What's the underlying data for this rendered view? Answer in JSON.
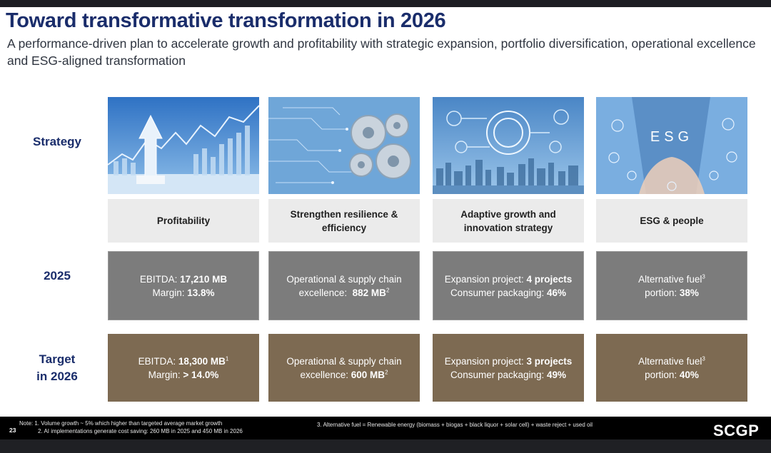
{
  "title": "Toward transformative transformation in 2026",
  "subtitle": "A performance-driven plan to accelerate growth and profitability with strategic expansion, portfolio diversification, operational excellence and ESG-aligned transformation",
  "rows": {
    "strategy": "Strategy",
    "y2025": "2025",
    "target_line1": "Target",
    "target_line2": "in 2026"
  },
  "images": {
    "esg_text": "ESG"
  },
  "columns": [
    {
      "header": "Profitability",
      "y2025": {
        "l1_label": "EBITDA: ",
        "l1_value": "17,210 MB",
        "l1_sup": "",
        "l2_label": "Margin: ",
        "l2_value": "13.8%"
      },
      "target": {
        "l1_label": "EBITDA: ",
        "l1_value": "18,300 MB",
        "l1_sup": "1",
        "l2_label": "Margin: ",
        "l2_value": "> 14.0%"
      }
    },
    {
      "header": "Strengthen resilience & efficiency",
      "y2025": {
        "l1_text": "Operational & supply chain",
        "l2_label": "excellence:  ",
        "l2_value": "882 MB",
        "l2_sup": "2"
      },
      "target": {
        "l1_text": "Operational & supply chain",
        "l2_label": "excellence: ",
        "l2_value": "600 MB",
        "l2_sup": "2"
      }
    },
    {
      "header": "Adaptive growth and innovation strategy",
      "y2025": {
        "l1_label": "Expansion project: ",
        "l1_value": "4 projects",
        "l2_label": "Consumer packaging: ",
        "l2_value": "46%"
      },
      "target": {
        "l1_label": "Expansion project: ",
        "l1_value": "3 projects",
        "l2_label": "Consumer packaging: ",
        "l2_value": "49%"
      }
    },
    {
      "header": "ESG & people",
      "y2025": {
        "l1_text": "Alternative fuel",
        "l1_sup": "3",
        "l2_label": "portion: ",
        "l2_value": "38%"
      },
      "target": {
        "l1_text": "Alternative fuel",
        "l1_sup": "3",
        "l2_label": "portion: ",
        "l2_value": "40%"
      }
    }
  ],
  "footer": {
    "page_number": "23",
    "note_line1": "Note:  1. Volume growth ~ 5% which higher than targeted average market growth",
    "note_line2": "2. AI implementations generate cost saving: 260 MB in 2025 and 450 MB in 2026",
    "note3": "3. Alternative fuel = Renewable energy (biomass + biogas + black liquor + solar cell) + waste reject + used oil",
    "logo": "SCGP"
  },
  "colors": {
    "title": "#1a2d6b",
    "row_2025_bg": "#7c7c7c",
    "row_target_bg": "#7d6a52",
    "header_bg": "#ebebeb"
  }
}
